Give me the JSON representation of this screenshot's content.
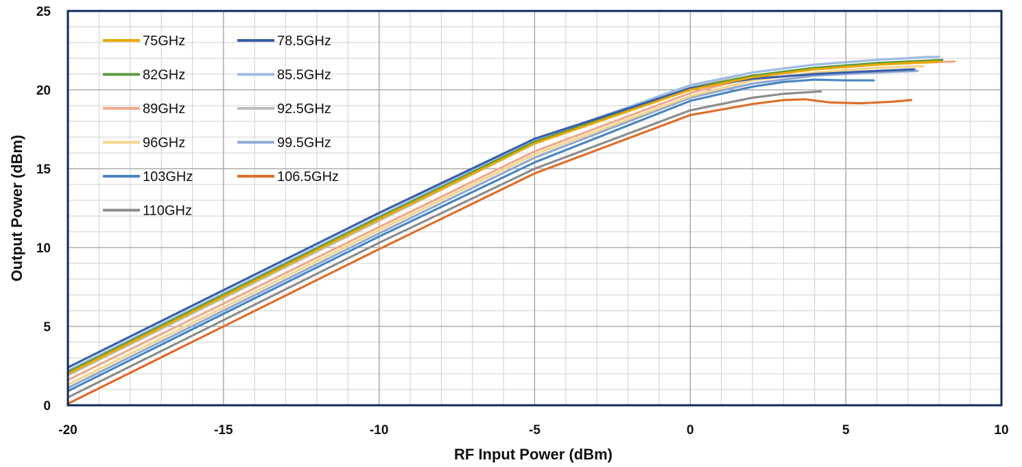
{
  "chart_data": {
    "type": "line",
    "title": "",
    "xlabel": "RF Input Power (dBm)",
    "ylabel": "Output Power (dBm)",
    "xlim": [
      -20,
      10
    ],
    "ylim": [
      0,
      25
    ],
    "x_major_ticks": [
      "-20",
      "-15",
      "-10",
      "-5",
      "0",
      "5",
      "10"
    ],
    "y_major_ticks": [
      "0",
      "5",
      "10",
      "15",
      "20",
      "25"
    ],
    "x_minor_step": 1,
    "y_minor_step": 1,
    "grid": true,
    "legend_position": "top-left",
    "series": [
      {
        "name": "75GHz",
        "color": "#E8A800",
        "x": [
          -20,
          -10,
          -5,
          0,
          2,
          4,
          6,
          8
        ],
        "y": [
          2.0,
          11.8,
          16.6,
          20.0,
          20.8,
          21.3,
          21.6,
          21.8
        ]
      },
      {
        "name": "78.5GHz",
        "color": "#3A5FA8",
        "x": [
          -20,
          -10,
          -5,
          0,
          2,
          4,
          6,
          7.2
        ],
        "y": [
          2.4,
          12.2,
          16.9,
          20.1,
          20.7,
          21.0,
          21.2,
          21.3
        ]
      },
      {
        "name": "82GHz",
        "color": "#5E9A3C",
        "x": [
          -20,
          -10,
          -5,
          0,
          2,
          4,
          6,
          8.1
        ],
        "y": [
          2.1,
          11.9,
          16.7,
          20.1,
          20.9,
          21.4,
          21.7,
          21.9
        ]
      },
      {
        "name": "85.5GHz",
        "color": "#9DBDE4",
        "x": [
          -20,
          -10,
          -5,
          0,
          2,
          4,
          6,
          8.0
        ],
        "y": [
          2.2,
          12.0,
          16.8,
          20.3,
          21.1,
          21.6,
          21.9,
          22.1
        ]
      },
      {
        "name": "89GHz",
        "color": "#F0A98A",
        "x": [
          -20,
          -10,
          -5,
          0,
          2,
          4,
          6,
          8.5
        ],
        "y": [
          1.6,
          11.3,
          16.1,
          19.8,
          20.8,
          21.3,
          21.6,
          21.8
        ]
      },
      {
        "name": "92.5GHz",
        "color": "#BDBDBD",
        "x": [
          -20,
          -10,
          -5,
          0,
          2,
          4,
          6,
          7.7
        ],
        "y": [
          1.9,
          11.7,
          16.6,
          20.2,
          21.1,
          21.6,
          21.9,
          22.1
        ]
      },
      {
        "name": "96GHz",
        "color": "#F8D48A",
        "x": [
          -20,
          -10,
          -5,
          0,
          2,
          4,
          6,
          7.5
        ],
        "y": [
          1.3,
          11.1,
          15.9,
          19.6,
          20.6,
          21.1,
          21.4,
          21.5
        ]
      },
      {
        "name": "99.5GHz",
        "color": "#8FA8D0",
        "x": [
          -20,
          -10,
          -5,
          0,
          2,
          4,
          6,
          7.3
        ],
        "y": [
          1.1,
          10.9,
          15.7,
          19.5,
          20.4,
          20.9,
          21.1,
          21.2
        ]
      },
      {
        "name": "103GHz",
        "color": "#4A86C0",
        "x": [
          -20,
          -10,
          -5,
          0,
          2,
          3,
          4,
          5,
          5.9
        ],
        "y": [
          0.9,
          10.7,
          15.4,
          19.3,
          20.2,
          20.5,
          20.65,
          20.6,
          20.6
        ]
      },
      {
        "name": "106.5GHz",
        "color": "#DD6E2A",
        "x": [
          -20,
          -15,
          -10,
          -5,
          0,
          2,
          3,
          3.7,
          4.5,
          5.5,
          6.5,
          7.1
        ],
        "y": [
          0.1,
          5.0,
          9.9,
          14.7,
          18.4,
          19.1,
          19.35,
          19.4,
          19.2,
          19.15,
          19.25,
          19.35
        ]
      },
      {
        "name": "110GHz",
        "color": "#8C8C8C",
        "x": [
          -20,
          -10,
          -5,
          0,
          2,
          3,
          4.2
        ],
        "y": [
          0.5,
          10.3,
          15.0,
          18.7,
          19.5,
          19.75,
          19.9
        ]
      }
    ]
  }
}
